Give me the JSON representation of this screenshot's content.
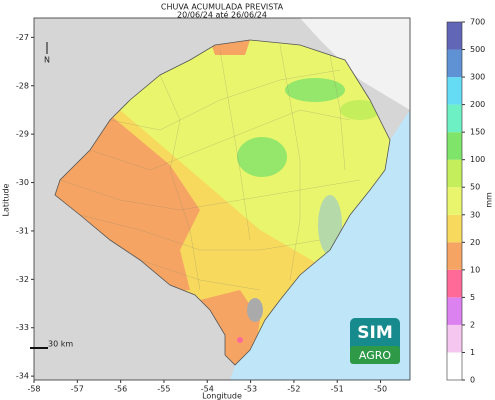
{
  "map": {
    "title": [
      "CHUVA ACUMULADA PREVISTA",
      "20/06/24 até 26/06/24"
    ],
    "x_label": "Longitude",
    "y_label": "Latitude",
    "xlim": [
      -58,
      -49.32
    ],
    "ylim": [
      -34.08,
      -26.6
    ],
    "xticks": [
      -58,
      -57,
      -56,
      -55,
      -54,
      -53,
      -52,
      -51,
      -50
    ],
    "yticks": [
      -34,
      -33,
      -32,
      -31,
      -30,
      -29,
      -28,
      -27
    ],
    "north": "N",
    "scale": "30 km",
    "logo": [
      "SIM",
      "AGRO"
    ]
  },
  "colorbar": {
    "label": "mm",
    "levels": [
      0,
      1,
      2,
      5,
      10,
      20,
      30,
      50,
      100,
      150,
      200,
      300,
      500,
      700
    ],
    "colors": [
      "#ffffff",
      "#f5c6f0",
      "#dc82f0",
      "#ff6a98",
      "#f5a463",
      "#f7d95e",
      "#e9f56c",
      "#c5ee5c",
      "#7ee46a",
      "#6cf0c4",
      "#66dcf4",
      "#5f92d4",
      "#6266b6"
    ]
  }
}
